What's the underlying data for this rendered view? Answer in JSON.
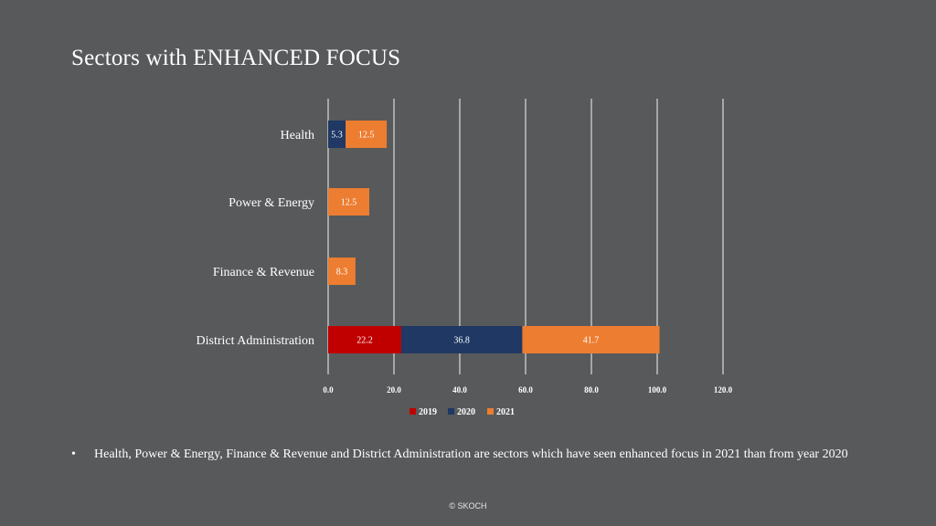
{
  "slide": {
    "title": "Sectors with ENHANCED FOCUS",
    "bullet_symbol": "•",
    "bullet_text": "Health, Power & Energy, Finance & Revenue and District Administration are sectors which have seen enhanced focus in 2021 than from year 2020",
    "footer": "© SKOCH"
  },
  "colors": {
    "background": "#58595b",
    "2019": "#c00000",
    "2020": "#1f3864",
    "2021": "#ed7d31",
    "grid": "#d9d9d9"
  },
  "chart_data": {
    "type": "bar",
    "orientation": "horizontal",
    "stacked": true,
    "categories": [
      "Health",
      "Power & Energy",
      "Finance & Revenue",
      "District Administration"
    ],
    "series": [
      {
        "name": "2019",
        "values": [
          null,
          null,
          null,
          22.2
        ],
        "labels": [
          "",
          "",
          "",
          "22.2"
        ]
      },
      {
        "name": "2020",
        "values": [
          5.3,
          null,
          null,
          36.8
        ],
        "labels": [
          "5.3",
          "",
          "",
          "36.8"
        ]
      },
      {
        "name": "2021",
        "values": [
          12.5,
          12.5,
          8.3,
          41.7
        ],
        "labels": [
          "12.5",
          "12.5",
          "8.3",
          "41.7"
        ]
      }
    ],
    "xlim": [
      0,
      120
    ],
    "xticks": [
      "0.0",
      "20.0",
      "40.0",
      "60.0",
      "80.0",
      "100.0",
      "120.0"
    ],
    "grid": true,
    "legend_position": "bottom"
  }
}
